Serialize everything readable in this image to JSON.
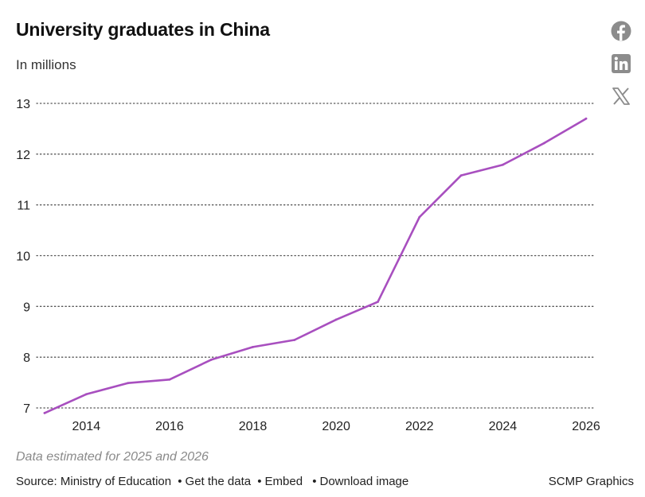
{
  "header": {
    "title": "University graduates in China",
    "subtitle": "In millions"
  },
  "share": {
    "facebook_icon": "facebook-icon",
    "linkedin_icon": "linkedin-icon",
    "x_icon": "x-twitter-icon"
  },
  "chart_data": {
    "type": "line",
    "title": "University graduates in China",
    "subtitle": "In millions",
    "xlabel": "",
    "ylabel": "",
    "x": [
      2013,
      2014,
      2015,
      2016,
      2017,
      2018,
      2019,
      2020,
      2021,
      2022,
      2023,
      2024,
      2025,
      2026
    ],
    "series": [
      {
        "values": [
          6.9,
          7.27,
          7.49,
          7.56,
          7.95,
          8.2,
          8.34,
          8.74,
          9.09,
          10.76,
          11.58,
          11.79,
          12.22,
          12.7
        ],
        "color": "#a84fbf"
      }
    ],
    "x_ticks": [
      "2014",
      "2016",
      "2018",
      "2020",
      "2022",
      "2024",
      "2026"
    ],
    "y_ticks": [
      "7",
      "8",
      "9",
      "10",
      "11",
      "12",
      "13"
    ],
    "xlim": [
      2013,
      2026
    ],
    "ylim": [
      7,
      13
    ],
    "grid": "horizontal dotted"
  },
  "footer": {
    "note": "Data estimated for 2025 and 2026",
    "source": "Source: Ministry of Education",
    "get_data": "Get the data",
    "embed": "Embed",
    "download": "Download image",
    "bullet": "•",
    "credit": "SCMP Graphics"
  }
}
